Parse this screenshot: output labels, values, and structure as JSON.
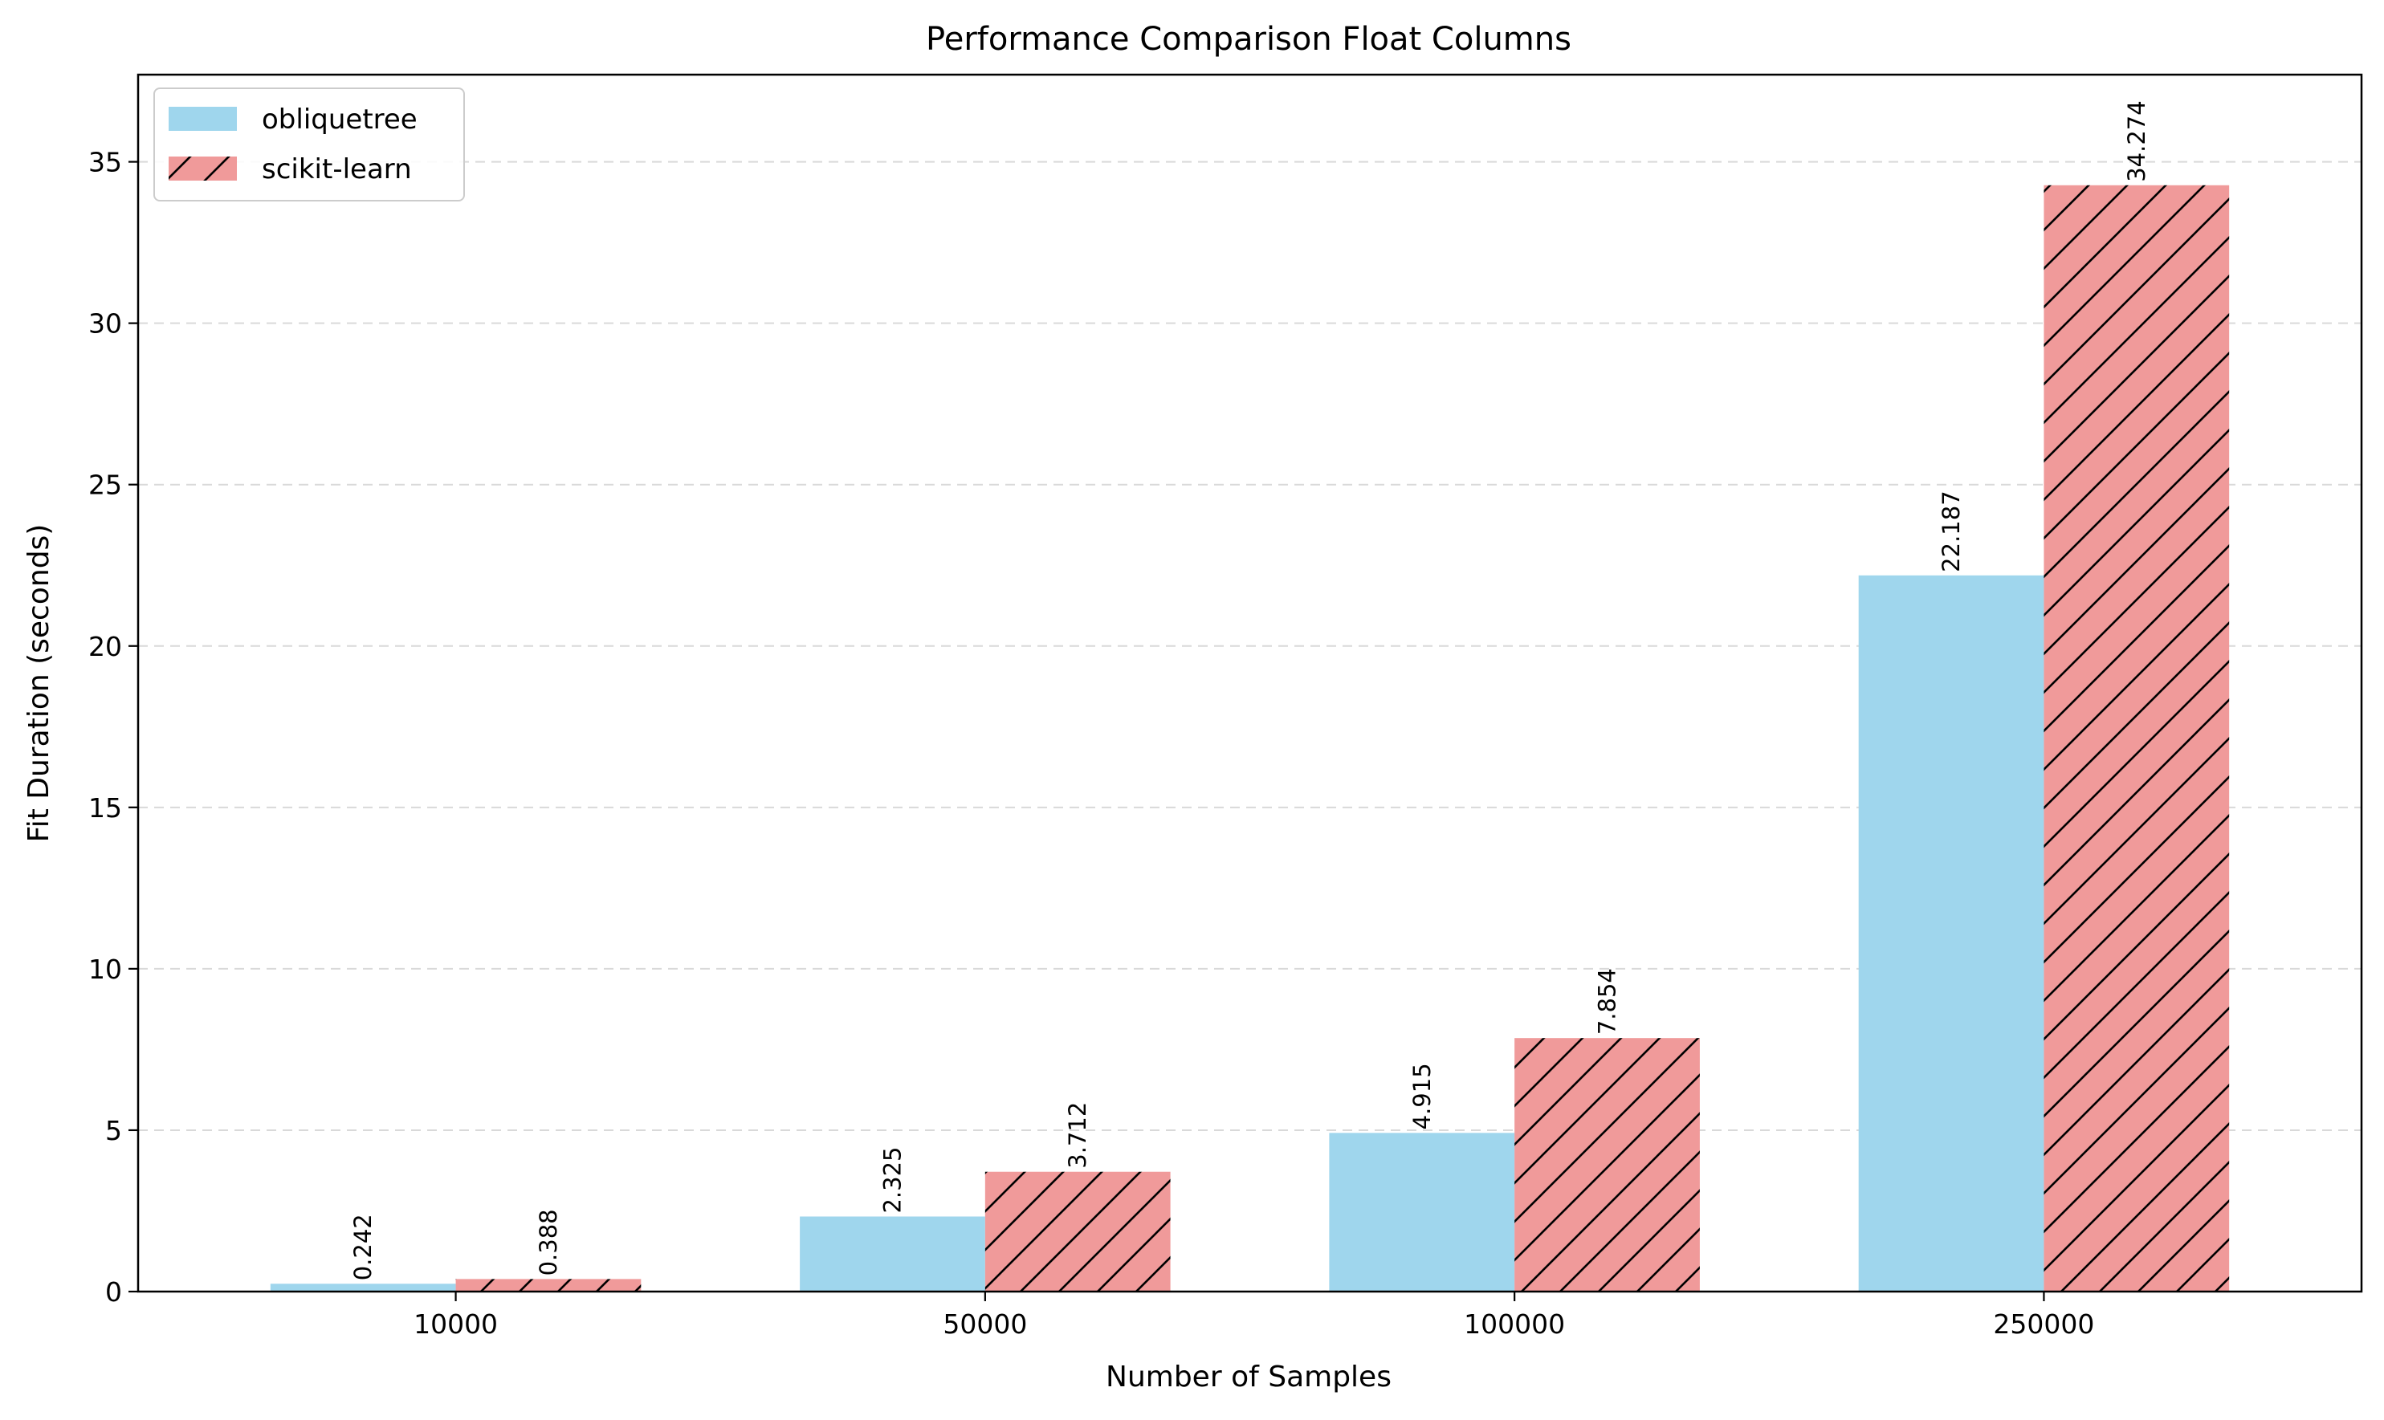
{
  "chart_data": {
    "type": "bar",
    "title": "Performance Comparison Float Columns",
    "xlabel": "Number of Samples",
    "ylabel": "Fit Duration (seconds)",
    "categories": [
      "10000",
      "50000",
      "100000",
      "250000"
    ],
    "series": [
      {
        "name": "obliquetree",
        "values": [
          0.242,
          2.325,
          4.915,
          22.187
        ],
        "color": "#9fd6ed",
        "hatch": false
      },
      {
        "name": "scikit-learn",
        "values": [
          0.388,
          3.712,
          7.854,
          34.274
        ],
        "color": "#f09a9a",
        "hatch": true
      }
    ],
    "data_labels": [
      [
        "0.242",
        "2.325",
        "4.915",
        "22.187"
      ],
      [
        "0.388",
        "3.712",
        "7.854",
        "34.274"
      ]
    ],
    "ylim": [
      0,
      37.7
    ],
    "yticks": [
      0,
      5,
      10,
      15,
      20,
      25,
      30,
      35
    ],
    "grid": "y-dashed",
    "legend_position": "top-left"
  }
}
